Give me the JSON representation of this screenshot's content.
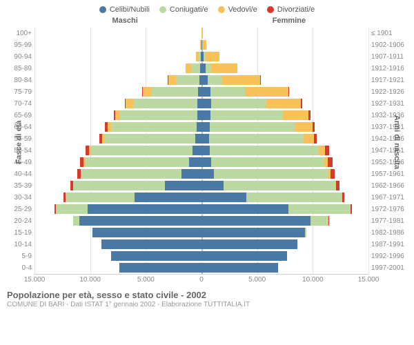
{
  "legend": [
    {
      "label": "Celibi/Nubili",
      "color": "#4a79a6"
    },
    {
      "label": "Coniugati/e",
      "color": "#bdd9a3"
    },
    {
      "label": "Vedovi/e",
      "color": "#f7c259"
    },
    {
      "label": "Divorziati/e",
      "color": "#d63a2c"
    }
  ],
  "headers": {
    "male": "Maschi",
    "female": "Femmine"
  },
  "axis_titles": {
    "left": "Fasce di età",
    "right": "Anni di nascita"
  },
  "x_axis": {
    "max": 15000,
    "ticks": [
      15000,
      10000,
      5000,
      0,
      5000,
      10000,
      15000
    ],
    "tick_labels": [
      "15.000",
      "10.000",
      "5.000",
      "0",
      "5.000",
      "10.000",
      "15.000"
    ]
  },
  "grid_color": "#e6e6e6",
  "center_dash_color": "#bbbbbb",
  "background": "#ffffff",
  "bar_row_height": 17,
  "title": "Popolazione per età, sesso e stato civile - 2002",
  "subtitle": "COMUNE DI BARI - Dati ISTAT 1° gennaio 2002 - Elaborazione TUTTITALIA.IT",
  "rows": [
    {
      "age": "100+",
      "birth": "≤ 1901",
      "m": {
        "celibi": 0,
        "coniug": 0,
        "vedov": 30,
        "divorz": 0
      },
      "f": {
        "celibi": 0,
        "coniug": 0,
        "vedov": 120,
        "divorz": 0
      }
    },
    {
      "age": "95-99",
      "birth": "1902-1906",
      "m": {
        "celibi": 10,
        "coniug": 20,
        "vedov": 80,
        "divorz": 0
      },
      "f": {
        "celibi": 40,
        "coniug": 20,
        "vedov": 400,
        "divorz": 0
      }
    },
    {
      "age": "90-94",
      "birth": "1907-1911",
      "m": {
        "celibi": 40,
        "coniug": 200,
        "vedov": 260,
        "divorz": 0
      },
      "f": {
        "celibi": 160,
        "coniug": 140,
        "vedov": 1300,
        "divorz": 0
      }
    },
    {
      "age": "85-89",
      "birth": "1912-1916",
      "m": {
        "celibi": 100,
        "coniug": 800,
        "vedov": 500,
        "divorz": 0
      },
      "f": {
        "celibi": 350,
        "coniug": 450,
        "vedov": 2400,
        "divorz": 0
      }
    },
    {
      "age": "80-84",
      "birth": "1917-1921",
      "m": {
        "celibi": 180,
        "coniug": 2100,
        "vedov": 720,
        "divorz": 30
      },
      "f": {
        "celibi": 550,
        "coniug": 1300,
        "vedov": 3400,
        "divorz": 30
      }
    },
    {
      "age": "75-79",
      "birth": "1922-1926",
      "m": {
        "celibi": 280,
        "coniug": 4200,
        "vedov": 820,
        "divorz": 60
      },
      "f": {
        "celibi": 800,
        "coniug": 3100,
        "vedov": 3900,
        "divorz": 80
      }
    },
    {
      "age": "70-74",
      "birth": "1927-1931",
      "m": {
        "celibi": 350,
        "coniug": 5800,
        "vedov": 650,
        "divorz": 100
      },
      "f": {
        "celibi": 850,
        "coniug": 4900,
        "vedov": 3200,
        "divorz": 120
      }
    },
    {
      "age": "65-69",
      "birth": "1932-1936",
      "m": {
        "celibi": 400,
        "coniug": 6900,
        "vedov": 450,
        "divorz": 150
      },
      "f": {
        "celibi": 800,
        "coniug": 6500,
        "vedov": 2300,
        "divorz": 180
      }
    },
    {
      "age": "60-64",
      "birth": "1937-1941",
      "m": {
        "celibi": 450,
        "coniug": 7700,
        "vedov": 300,
        "divorz": 200
      },
      "f": {
        "celibi": 750,
        "coniug": 7700,
        "vedov": 1500,
        "divorz": 220
      }
    },
    {
      "age": "55-59",
      "birth": "1942-1946",
      "m": {
        "celibi": 550,
        "coniug": 8200,
        "vedov": 180,
        "divorz": 250
      },
      "f": {
        "celibi": 700,
        "coniug": 8500,
        "vedov": 900,
        "divorz": 280
      }
    },
    {
      "age": "50-54",
      "birth": "1947-1951",
      "m": {
        "celibi": 800,
        "coniug": 9200,
        "vedov": 120,
        "divorz": 320
      },
      "f": {
        "celibi": 750,
        "coniug": 9800,
        "vedov": 550,
        "divorz": 350
      }
    },
    {
      "age": "45-49",
      "birth": "1952-1956",
      "m": {
        "celibi": 1100,
        "coniug": 9400,
        "vedov": 80,
        "divorz": 350
      },
      "f": {
        "celibi": 850,
        "coniug": 10200,
        "vedov": 320,
        "divorz": 400
      }
    },
    {
      "age": "40-44",
      "birth": "1957-1961",
      "m": {
        "celibi": 1800,
        "coniug": 9000,
        "vedov": 50,
        "divorz": 330
      },
      "f": {
        "celibi": 1100,
        "coniug": 10300,
        "vedov": 180,
        "divorz": 380
      }
    },
    {
      "age": "35-39",
      "birth": "1962-1966",
      "m": {
        "celibi": 3300,
        "coniug": 8200,
        "vedov": 30,
        "divorz": 280
      },
      "f": {
        "celibi": 2000,
        "coniug": 10000,
        "vedov": 100,
        "divorz": 320
      }
    },
    {
      "age": "30-34",
      "birth": "1967-1971",
      "m": {
        "celibi": 6000,
        "coniug": 6200,
        "vedov": 15,
        "divorz": 180
      },
      "f": {
        "celibi": 4000,
        "coniug": 8600,
        "vedov": 50,
        "divorz": 200
      }
    },
    {
      "age": "25-29",
      "birth": "1972-1976",
      "m": {
        "celibi": 10200,
        "coniug": 2900,
        "vedov": 5,
        "divorz": 70
      },
      "f": {
        "celibi": 7800,
        "coniug": 5600,
        "vedov": 20,
        "divorz": 90
      }
    },
    {
      "age": "20-24",
      "birth": "1977-1981",
      "m": {
        "celibi": 11000,
        "coniug": 500,
        "vedov": 0,
        "divorz": 10
      },
      "f": {
        "celibi": 9800,
        "coniug": 1600,
        "vedov": 5,
        "divorz": 15
      }
    },
    {
      "age": "15-19",
      "birth": "1982-1986",
      "m": {
        "celibi": 9800,
        "coniug": 20,
        "vedov": 0,
        "divorz": 0
      },
      "f": {
        "celibi": 9300,
        "coniug": 120,
        "vedov": 0,
        "divorz": 0
      }
    },
    {
      "age": "10-14",
      "birth": "1987-1991",
      "m": {
        "celibi": 9000,
        "coniug": 0,
        "vedov": 0,
        "divorz": 0
      },
      "f": {
        "celibi": 8600,
        "coniug": 0,
        "vedov": 0,
        "divorz": 0
      }
    },
    {
      "age": "5-9",
      "birth": "1992-1996",
      "m": {
        "celibi": 8100,
        "coniug": 0,
        "vedov": 0,
        "divorz": 0
      },
      "f": {
        "celibi": 7700,
        "coniug": 0,
        "vedov": 0,
        "divorz": 0
      }
    },
    {
      "age": "0-4",
      "birth": "1997-2001",
      "m": {
        "celibi": 7400,
        "coniug": 0,
        "vedov": 0,
        "divorz": 0
      },
      "f": {
        "celibi": 6900,
        "coniug": 0,
        "vedov": 0,
        "divorz": 0
      }
    }
  ]
}
